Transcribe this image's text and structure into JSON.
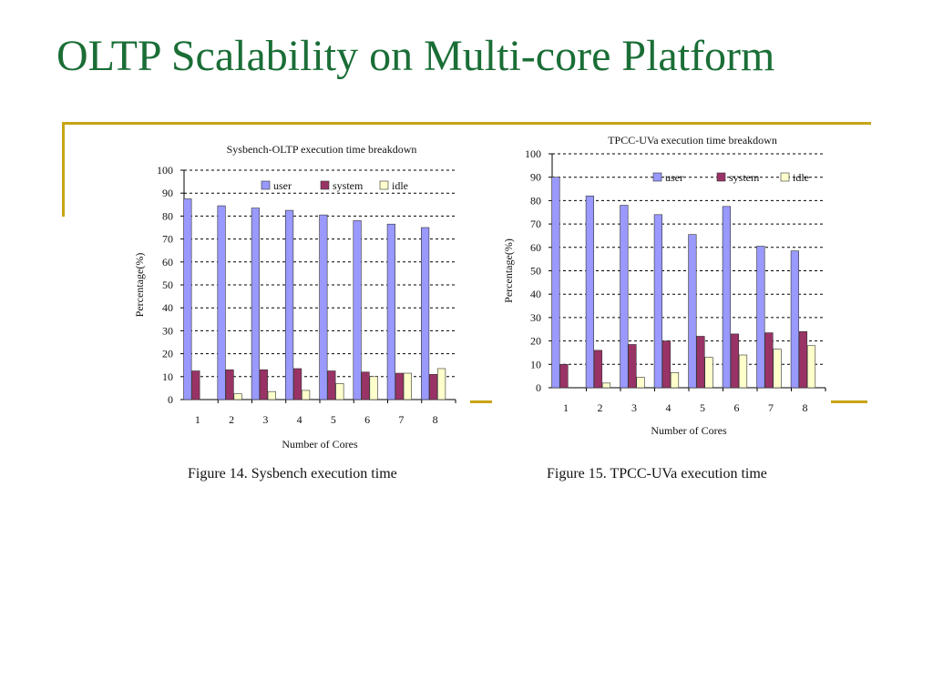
{
  "slide": {
    "title": "OLTP Scalability on Multi-core Platform"
  },
  "colors": {
    "user": "#9999ff",
    "system": "#993366",
    "idle": "#ffffcc",
    "title": "#1a6e36",
    "accent_line": "#c9a416"
  },
  "captions": {
    "left": "Figure 14. Sysbench execution time",
    "right": "Figure 15. TPCC-UVa execution time"
  },
  "chart_data": [
    {
      "type": "bar",
      "title": "Sysbench-OLTP execution time breakdown",
      "xlabel": "Number of Cores",
      "ylabel": "Percentage(%)",
      "categories": [
        "1",
        "2",
        "3",
        "4",
        "5",
        "6",
        "7",
        "8"
      ],
      "ylim": [
        0,
        100
      ],
      "yticks": [
        0,
        10,
        20,
        30,
        40,
        50,
        60,
        70,
        80,
        90,
        100
      ],
      "grid": true,
      "legend": "top-right",
      "series": [
        {
          "name": "user",
          "values": [
            87.5,
            84.5,
            83.5,
            82.5,
            80.5,
            78,
            76.5,
            75
          ]
        },
        {
          "name": "system",
          "values": [
            12.5,
            13,
            13,
            13.5,
            12.5,
            12,
            11.5,
            11
          ]
        },
        {
          "name": "idle",
          "values": [
            0,
            2.5,
            3.5,
            4,
            7,
            10,
            11.5,
            13.5
          ]
        }
      ]
    },
    {
      "type": "bar",
      "title": "TPCC-UVa execution time breakdown",
      "xlabel": "Number of Cores",
      "ylabel": "Percentage(%)",
      "categories": [
        "1",
        "2",
        "3",
        "4",
        "5",
        "6",
        "7",
        "8"
      ],
      "ylim": [
        0,
        100
      ],
      "yticks": [
        0,
        10,
        20,
        30,
        40,
        50,
        60,
        70,
        80,
        90,
        100
      ],
      "grid": true,
      "legend": "top-right",
      "series": [
        {
          "name": "user",
          "values": [
            90,
            82,
            78,
            74,
            65.5,
            77.5,
            60.5,
            58.5
          ]
        },
        {
          "name": "system",
          "values": [
            10,
            16,
            18.5,
            20,
            22,
            23,
            23.5,
            24
          ]
        },
        {
          "name": "idle",
          "values": [
            0,
            2,
            4.5,
            6.5,
            13,
            14,
            16.5,
            18
          ]
        }
      ]
    }
  ]
}
